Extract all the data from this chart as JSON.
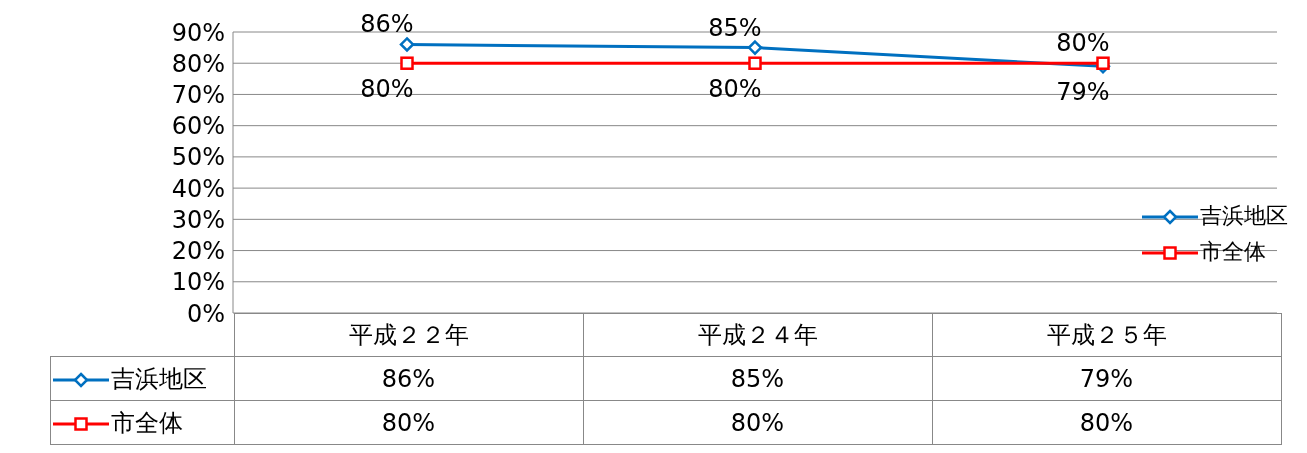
{
  "chart_data": {
    "type": "line",
    "categories": [
      "平成２２年",
      "平成２４年",
      "平成２５年"
    ],
    "series": [
      {
        "name": "吉浜地区",
        "color": "#0070c0",
        "marker": "diamond",
        "values": [
          86,
          85,
          79
        ],
        "value_labels": [
          "86%",
          "85%",
          "79%"
        ]
      },
      {
        "name": "市全体",
        "color": "#ff0000",
        "marker": "square",
        "values": [
          80,
          80,
          80
        ],
        "value_labels": [
          "80%",
          "80%",
          "80%"
        ]
      }
    ],
    "ylim": [
      0,
      90
    ],
    "yticks": [
      {
        "value": 0,
        "label": "0%"
      },
      {
        "value": 10,
        "label": "10%"
      },
      {
        "value": 20,
        "label": "20%"
      },
      {
        "value": 30,
        "label": "30%"
      },
      {
        "value": 40,
        "label": "40%"
      },
      {
        "value": 50,
        "label": "50%"
      },
      {
        "value": 60,
        "label": "60%"
      },
      {
        "value": 70,
        "label": "70%"
      },
      {
        "value": 80,
        "label": "80%"
      },
      {
        "value": 90,
        "label": "90%"
      }
    ],
    "grid": "y",
    "legend": "right",
    "line_style": "solid"
  }
}
